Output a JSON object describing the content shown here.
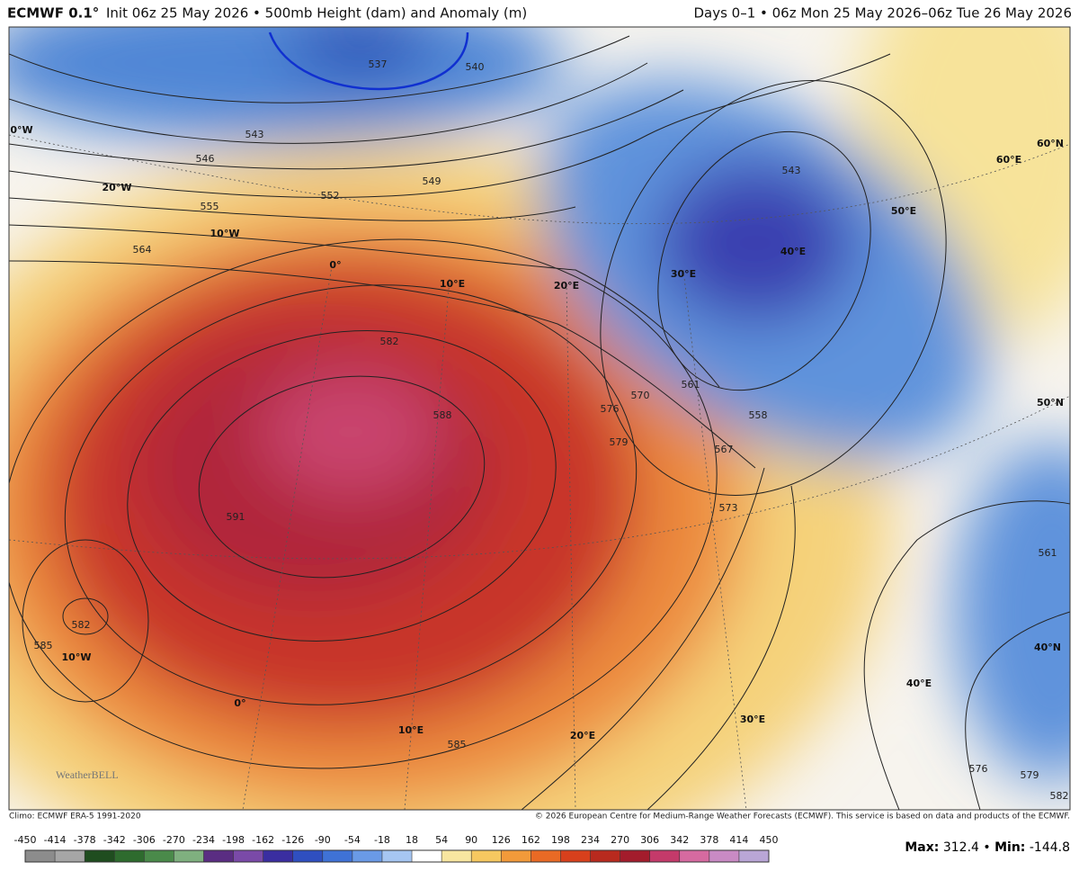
{
  "header": {
    "model": "ECMWF 0.1°",
    "title": "Init 06z 25 May 2026 • 500mb Height (dam) and Anomaly (m)",
    "valid": "Days 0–1 • 06z Mon 25 May 2026–06z Tue 26 May 2026"
  },
  "map": {
    "contour_labels": [
      "537",
      "540",
      "543",
      "546",
      "549",
      "552",
      "555",
      "564",
      "582",
      "588",
      "591",
      "582",
      "585",
      "570",
      "576",
      "579",
      "561",
      "558",
      "567",
      "573",
      "585",
      "576",
      "579",
      "582",
      "561",
      "543"
    ],
    "graticule_labels": [
      "0°W",
      "20°W",
      "10°W",
      "0°",
      "10°E",
      "20°E",
      "30°E",
      "40°E",
      "50°E",
      "60°E",
      "60°N",
      "50°N",
      "40°N",
      "40°E",
      "30°E",
      "20°E",
      "10°E",
      "0°",
      "10°W"
    ],
    "watermark": "WeatherBELL"
  },
  "footer": {
    "climo": "Climo: ECMWF ERA-5 1991-2020",
    "credit": "© 2026 European Centre for Medium-Range Weather Forecasts (ECMWF). This service is based on data and products of the ECMWF."
  },
  "colorbar": {
    "ticks": [
      -450,
      -414,
      -378,
      -342,
      -306,
      -270,
      -234,
      -198,
      -162,
      -126,
      -90,
      -54,
      -18,
      18,
      54,
      90,
      126,
      162,
      198,
      234,
      270,
      306,
      342,
      378,
      414,
      450
    ],
    "colors": [
      "#8c8c8c",
      "#a6a6a6",
      "#1f4d1f",
      "#2e6b2e",
      "#4a8a4a",
      "#7fb07f",
      "#5a2d82",
      "#7a4aa8",
      "#3a2ea0",
      "#2f4fc0",
      "#3f72d6",
      "#6a9ae6",
      "#a6c6f2",
      "#ffffff",
      "#f8e6a0",
      "#f6c860",
      "#f29a3a",
      "#e96a25",
      "#d8401c",
      "#b82a1e",
      "#a31c2c",
      "#c43a6a",
      "#d66aa0",
      "#c98ac4",
      "#b9a6d6"
    ]
  },
  "stats": {
    "max_label": "Max:",
    "max": 312.4,
    "separator": "•",
    "min_label": "Min:",
    "min": -144.8
  }
}
